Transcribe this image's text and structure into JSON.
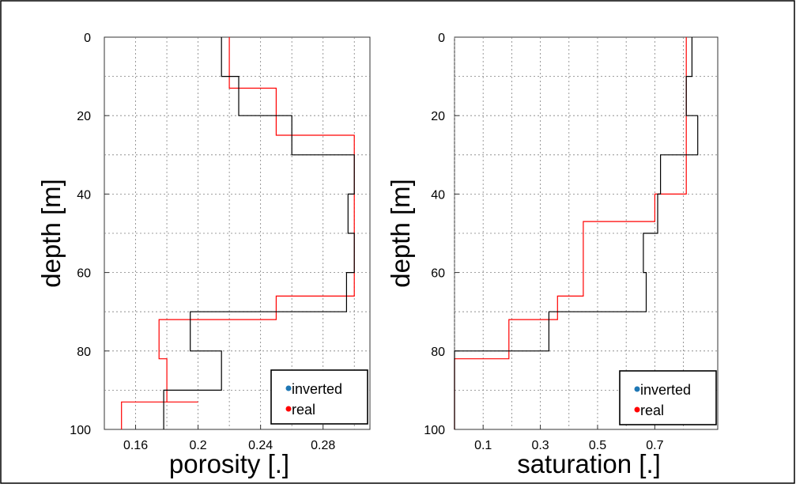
{
  "chart_data": [
    {
      "type": "line",
      "id": "porosity",
      "xlabel": "porosity [.]",
      "ylabel": "depth [m]",
      "xlim": [
        0.14,
        0.31
      ],
      "ylim": [
        0,
        100
      ],
      "y_inverted": true,
      "grid": true,
      "xticks": [
        0.16,
        0.2,
        0.24,
        0.28
      ],
      "xtick_labels": [
        "0.16",
        "0.2",
        "0.24",
        "0.28"
      ],
      "yticks": [
        0,
        20,
        40,
        60,
        80,
        100
      ],
      "ytick_labels": [
        "0",
        "20",
        "40",
        "60",
        "80",
        "100"
      ],
      "legend": [
        "inverted",
        "real"
      ],
      "legend_position": "bottom-right",
      "series": [
        {
          "name": "real",
          "color": "#ff0000",
          "step_values": [
            0.22,
            0.22,
            0.25,
            0.25,
            0.3,
            0.3,
            0.25,
            0.25,
            0.175,
            0.175,
            0.18,
            0.18,
            0.2,
            0.2,
            0.151,
            0.151
          ],
          "step_depths": [
            0,
            13,
            13,
            25,
            25,
            66,
            66,
            72,
            72,
            82,
            82,
            93,
            93,
            93,
            93,
            100
          ]
        },
        {
          "name": "inverted",
          "color": "#000000",
          "step_values": [
            0.215,
            0.215,
            0.226,
            0.226,
            0.26,
            0.26,
            0.3,
            0.3,
            0.296,
            0.296,
            0.3,
            0.3,
            0.295,
            0.295,
            0.195,
            0.195,
            0.215,
            0.215,
            0.178,
            0.178
          ],
          "step_depths": [
            0,
            10,
            10,
            20,
            20,
            30,
            30,
            40,
            40,
            50,
            50,
            60,
            60,
            70,
            70,
            80,
            80,
            90,
            90,
            100
          ]
        }
      ]
    },
    {
      "type": "line",
      "id": "saturation",
      "xlabel": "saturation [.]",
      "ylabel": "depth [m]",
      "xlim": [
        0,
        0.92
      ],
      "ylim": [
        0,
        100
      ],
      "y_inverted": true,
      "grid": true,
      "xticks": [
        0.1,
        0.3,
        0.5,
        0.7
      ],
      "xtick_labels": [
        "0.1",
        "0.3",
        "0.5",
        "0.7"
      ],
      "yticks": [
        0,
        20,
        40,
        60,
        80,
        100
      ],
      "ytick_labels": [
        "0",
        "20",
        "40",
        "60",
        "80",
        "100"
      ],
      "legend": [
        "inverted",
        "real"
      ],
      "legend_position": "bottom-right",
      "series": [
        {
          "name": "real",
          "color": "#ff0000",
          "step_values": [
            0.81,
            0.81,
            0.7,
            0.7,
            0.45,
            0.45,
            0.36,
            0.36,
            0.19,
            0.19,
            0.0,
            0.0
          ],
          "step_depths": [
            0,
            40,
            40,
            47,
            47,
            66,
            66,
            72,
            72,
            82,
            82,
            100
          ]
        },
        {
          "name": "inverted",
          "color": "#000000",
          "step_values": [
            0.83,
            0.83,
            0.81,
            0.81,
            0.85,
            0.85,
            0.72,
            0.72,
            0.71,
            0.71,
            0.66,
            0.66,
            0.67,
            0.67,
            0.33,
            0.33,
            0.0,
            0.0
          ],
          "step_depths": [
            0,
            10,
            10,
            20,
            20,
            30,
            30,
            40,
            40,
            50,
            50,
            60,
            60,
            70,
            70,
            80,
            80,
            100
          ]
        }
      ]
    }
  ]
}
